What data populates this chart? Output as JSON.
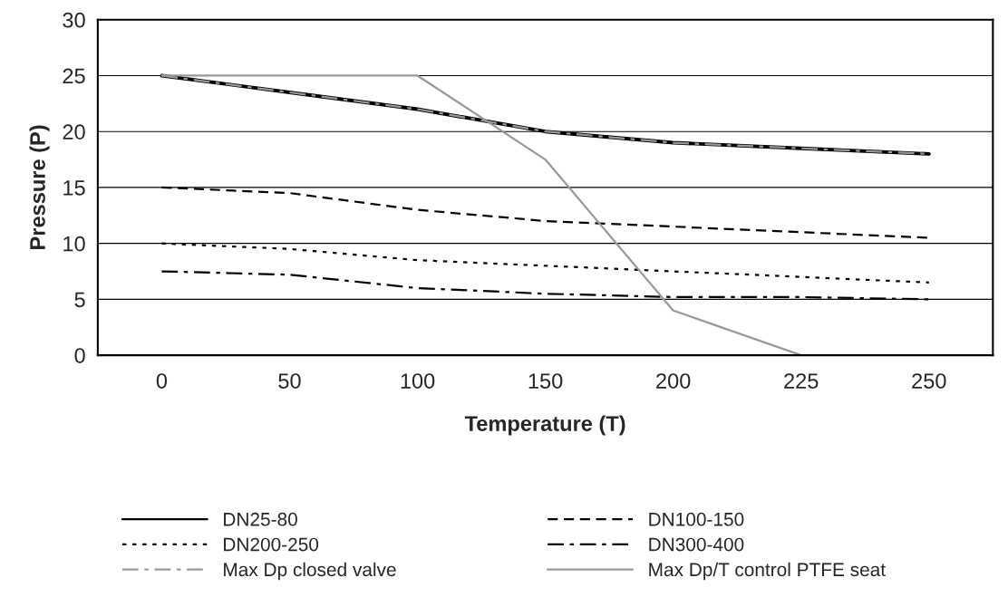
{
  "chart_data": {
    "type": "line",
    "xlabel": "Temperature (T)",
    "ylabel": "Pressure (P)",
    "categories": [
      "0",
      "50",
      "100",
      "150",
      "200",
      "225",
      "250"
    ],
    "series": [
      {
        "name": "DN25-80",
        "color": "#000000",
        "line_style": "solid",
        "values": [
          25,
          23.5,
          22,
          20,
          19,
          18.5,
          18
        ]
      },
      {
        "name": "DN100-150",
        "color": "#000000",
        "line_style": "dashed",
        "values": [
          15,
          14.5,
          13,
          12,
          11.5,
          11,
          10.5
        ]
      },
      {
        "name": "DN200-250",
        "color": "#000000",
        "line_style": "dotted",
        "values": [
          10,
          9.5,
          8.5,
          8,
          7.5,
          7,
          6.5
        ]
      },
      {
        "name": "DN300-400",
        "color": "#000000",
        "line_style": "dashdot",
        "values": [
          7.5,
          7.2,
          6,
          5.5,
          5.2,
          5.2,
          5
        ]
      },
      {
        "name": "Max Dp closed valve",
        "color": "#999999",
        "line_style": "dashdot",
        "values": [
          25,
          23.5,
          22,
          20,
          19,
          18.5,
          18
        ]
      },
      {
        "name": "Max Dp/T control PTFE seat",
        "color": "#999999",
        "line_style": "solid",
        "values": [
          25,
          25,
          25,
          17.5,
          4,
          0,
          null
        ]
      }
    ],
    "ylim": [
      0,
      30
    ],
    "yticks": [
      0,
      5,
      10,
      15,
      20,
      25,
      30
    ],
    "grid": "y",
    "legend": "bottom",
    "marker": "none"
  }
}
